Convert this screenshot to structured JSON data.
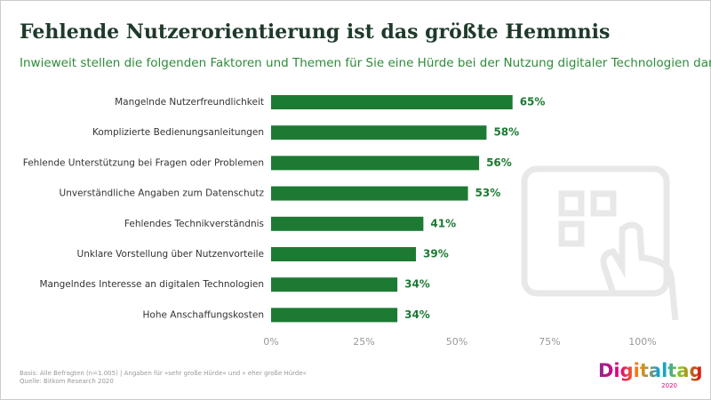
{
  "chart_data": {
    "type": "bar",
    "orientation": "horizontal",
    "title": "Fehlende Nutzerorientierung ist das größte Hemmnis",
    "subtitle": "Inwieweit stellen die folgenden Faktoren und Themen für Sie eine Hürde bei der Nutzung digitaler Technologien dar?",
    "categories": [
      "Mangelnde Nutzerfreundlichkeit",
      "Komplizierte Bedienungsanleitungen",
      "Fehlende Unterstützung bei Fragen oder Problemen",
      "Unverständliche Angaben zum Datenschutz",
      "Fehlendes Technikverständnis",
      "Unklare Vorstellung über Nutzenvorteile",
      "Mangelndes Interesse an digitalen Technologien",
      "Hohe Anschaffungskosten"
    ],
    "values": [
      65,
      58,
      56,
      53,
      41,
      39,
      34,
      34
    ],
    "value_labels": [
      "65%",
      "58%",
      "56%",
      "53%",
      "41%",
      "39%",
      "34%",
      "34%"
    ],
    "color": "#1c7a32",
    "xlim": [
      0,
      100
    ],
    "xticks": [
      {
        "value": 0,
        "label": "0%"
      },
      {
        "value": 25,
        "label": "25%"
      },
      {
        "value": 50,
        "label": "50%"
      },
      {
        "value": 75,
        "label": "75%"
      },
      {
        "value": 100,
        "label": "100%"
      }
    ],
    "grid": false,
    "footnotes": [
      "Basis: Alle Befragten (n=1.005) | Angaben für »sehr große Hürde« und » eher große Hürde«",
      "Quelle: Bitkom Research 2020"
    ],
    "logo": {
      "text": "Digitaltag",
      "year": "2020"
    }
  }
}
